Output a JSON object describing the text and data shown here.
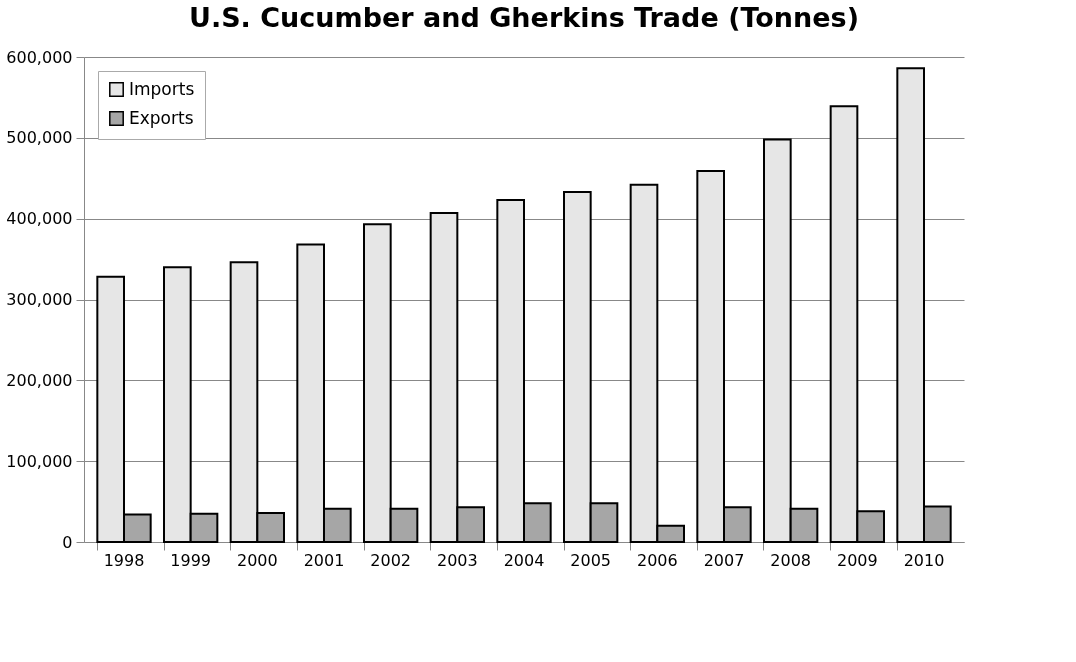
{
  "chart_data": {
    "type": "bar",
    "title": "U.S. Cucumber and Gherkins Trade (Tonnes)",
    "categories": [
      "1998",
      "1999",
      "2000",
      "2001",
      "2002",
      "2003",
      "2004",
      "2005",
      "2006",
      "2007",
      "2008",
      "2009",
      "2010"
    ],
    "series": [
      {
        "name": "Imports",
        "color": "#e6e6e6",
        "values": [
          328000,
          340000,
          346000,
          368000,
          393000,
          407000,
          423000,
          433000,
          442000,
          459000,
          498000,
          539000,
          586000
        ]
      },
      {
        "name": "Exports",
        "color": "#a6a6a6",
        "values": [
          34000,
          35000,
          36000,
          41000,
          41000,
          43000,
          48000,
          48000,
          20000,
          43000,
          41000,
          38000,
          44000
        ]
      }
    ],
    "ylim": [
      0,
      600000
    ],
    "yticks": [
      {
        "value": 0,
        "label": "0"
      },
      {
        "value": 100000,
        "label": "100,000"
      },
      {
        "value": 200000,
        "label": "200,000"
      },
      {
        "value": 300000,
        "label": "300,000"
      },
      {
        "value": 400000,
        "label": "400,000"
      },
      {
        "value": 500000,
        "label": "500,000"
      },
      {
        "value": 600000,
        "label": "600,000"
      }
    ],
    "grid": "y",
    "legend": "top left"
  }
}
